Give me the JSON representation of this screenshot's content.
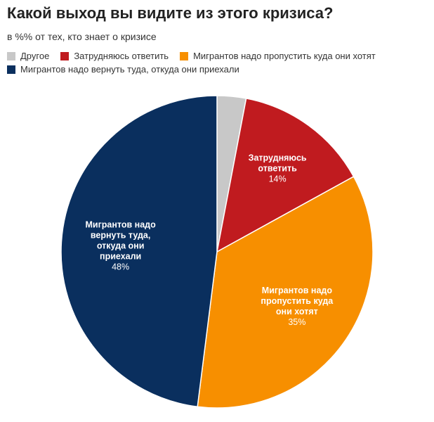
{
  "chart_data": {
    "type": "pie",
    "title": "Какой выход вы видите из этого кризиса?",
    "subtitle": "в %% от тех, кто знает о кризисе",
    "legend_position": "top-left",
    "slices": [
      {
        "name": "Другое",
        "value": 3,
        "color": "#c8c8c8",
        "label": [],
        "value_label": ""
      },
      {
        "name": "Затрудняюсь ответить",
        "value": 14,
        "color": "#c01b1f",
        "label": [
          "Затрудняюсь",
          "ответить"
        ],
        "value_label": "14%"
      },
      {
        "name": "Мигрантов надо пропустить куда они хотят",
        "value": 35,
        "color": "#f78f00",
        "label": [
          "Мигрантов надо",
          "пропустить куда",
          "они хотят"
        ],
        "value_label": "35%"
      },
      {
        "name": "Мигрантов надо вернуть туда, откуда они приехали",
        "value": 48,
        "color": "#0a2f5e",
        "label": [
          "Мигрантов надо",
          "вернуть туда,",
          "откуда они",
          "приехали"
        ],
        "value_label": "48%"
      }
    ]
  }
}
